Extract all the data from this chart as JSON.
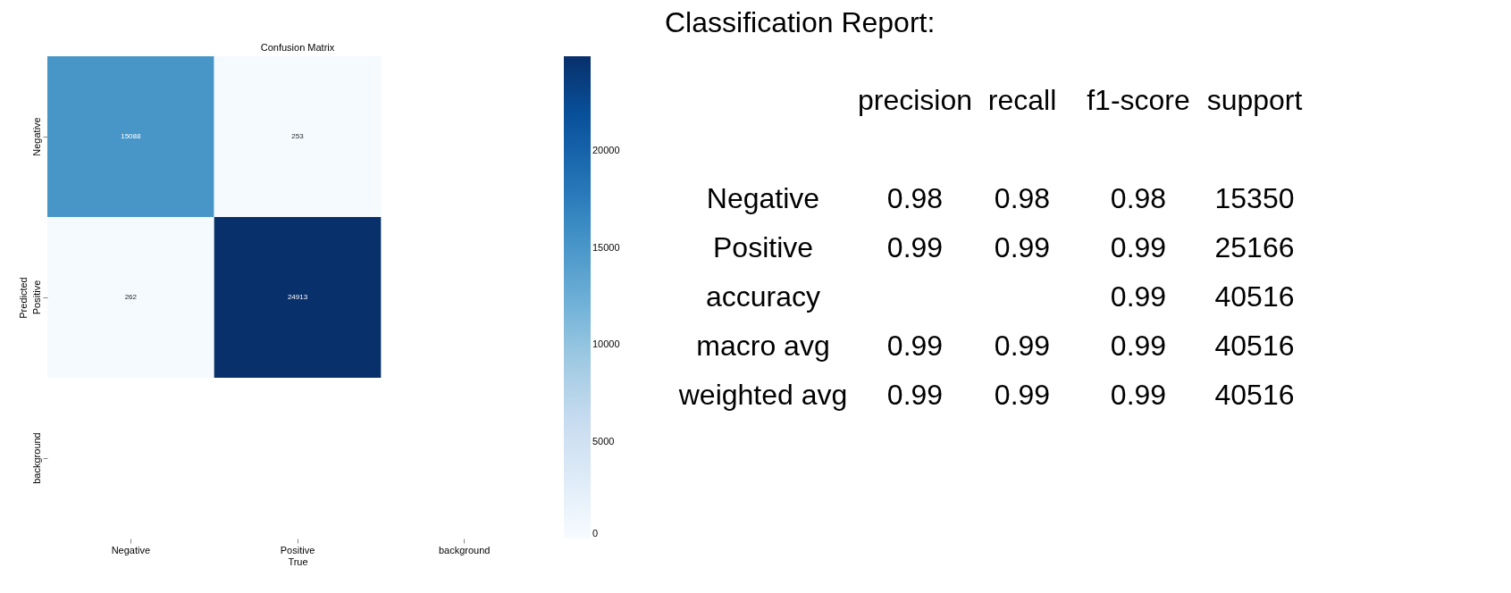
{
  "chart_data": [
    {
      "type": "heatmap",
      "title": "Confusion Matrix",
      "xlabel": "True",
      "ylabel": "Predicted",
      "categories": [
        "Negative",
        "Positive",
        "background"
      ],
      "y_categories": [
        "Negative",
        "Positive",
        "background"
      ],
      "cells": [
        [
          15088,
          253,
          null
        ],
        [
          262,
          24913,
          null
        ],
        [
          null,
          null,
          null
        ]
      ],
      "data_labels": true,
      "clim": [
        0,
        24913
      ],
      "cticks": [
        0,
        5000,
        10000,
        15000,
        20000
      ]
    },
    {
      "type": "other",
      "title": "Classification Report:",
      "categories": [
        "precision",
        "recall",
        "f1-score",
        "support"
      ],
      "y_categories": [
        "Negative",
        "Positive",
        "accuracy",
        "macro avg",
        "weighted avg"
      ],
      "cell_labels": [
        [
          "0.98",
          "0.98",
          "0.98",
          "15350"
        ],
        [
          "0.99",
          "0.99",
          "0.99",
          "25166"
        ],
        [
          null,
          null,
          "0.99",
          "40516"
        ],
        [
          "0.99",
          "0.99",
          "0.99",
          "40516"
        ],
        [
          "0.99",
          "0.99",
          "0.99",
          "40516"
        ]
      ]
    }
  ]
}
